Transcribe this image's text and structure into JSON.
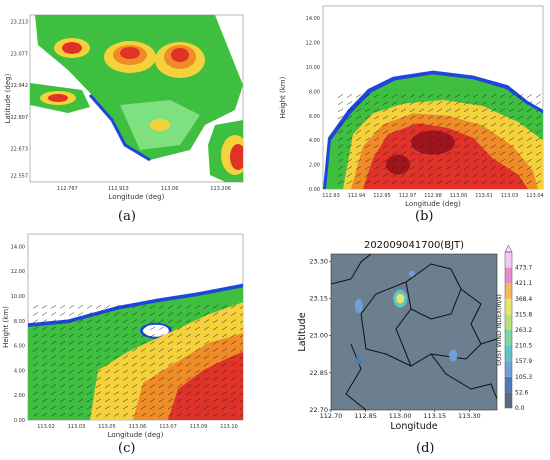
{
  "panels": {
    "a": {
      "caption": "(a)"
    },
    "b": {
      "caption": "(b)"
    },
    "c": {
      "caption": "(c)"
    },
    "d": {
      "caption": "(d)"
    }
  },
  "colors": {
    "green_dark": "#1e8c1e",
    "green": "#3fbf3f",
    "green_light": "#7fe07f",
    "yellow": "#f5d23c",
    "orange": "#f08c28",
    "red": "#e03228",
    "dark_red": "#a0141e",
    "blue": "#1e46dc",
    "cyan": "#64c8ff",
    "map_bg": "#6b7f8f"
  },
  "chart_data": [
    {
      "type": "heatmap",
      "panel": "a",
      "xlabel": "Longitude (deg)",
      "ylabel": "Latitude (deg)",
      "xticks": [
        "112.767",
        "112.913",
        "113.06",
        "113.206"
      ],
      "yticks": [
        "23.213",
        "23.077",
        "22.942",
        "22.807",
        "22.673",
        "22.557"
      ],
      "xlim": [
        112.66,
        113.27
      ],
      "ylim": [
        22.53,
        23.24
      ],
      "xtick_values": [
        112.767,
        112.913,
        113.06,
        113.206
      ],
      "ytick_values": [
        23.213,
        23.077,
        22.942,
        22.807,
        22.673,
        22.557
      ]
    },
    {
      "type": "heatmap",
      "panel": "b",
      "xlabel": "Longitude (deg)",
      "ylabel": "Height (km)",
      "xticks": [
        "112.93",
        "112.94",
        "112.95",
        "112.97",
        "112.98",
        "113.00",
        "113.01",
        "113.03",
        "113.04"
      ],
      "yticks": [
        "0.00",
        "2.00",
        "4.00",
        "6.00",
        "8.00",
        "10.00",
        "12.00",
        "14.00"
      ],
      "ylim": [
        0,
        15
      ]
    },
    {
      "type": "heatmap",
      "panel": "c",
      "xlabel": "Longitude (deg)",
      "ylabel": "Height (km)",
      "xticks": [
        "113.02",
        "113.03",
        "113.05",
        "113.06",
        "113.07",
        "113.09",
        "113.10"
      ],
      "yticks": [
        "0.00",
        "2.00",
        "4.00",
        "6.00",
        "8.00",
        "10.00",
        "12.00",
        "14.00"
      ],
      "ylim": [
        0,
        15
      ]
    },
    {
      "type": "heatmap",
      "panel": "d",
      "title": "202009041700(BJT)",
      "xlabel": "Longitude",
      "ylabel": "Latitude",
      "xticks": [
        "112.70",
        "112.85",
        "113.00",
        "113.15",
        "113.30"
      ],
      "yticks": [
        "22.70",
        "22.85",
        "23.00",
        "23.15",
        "23.30"
      ],
      "xlim": [
        112.7,
        113.42
      ],
      "ylim": [
        22.7,
        23.33
      ],
      "colorbar_label": "GUST WIND INDEX(m/s)",
      "colorbar_ticks": [
        "0.0",
        "52.6",
        "105.3",
        "157.9",
        "210.5",
        "263.2",
        "315.8",
        "368.4",
        "421.1",
        "473.7"
      ],
      "colorbar_colors": [
        "#5a6d80",
        "#4f78b4",
        "#6fa0d8",
        "#5fc3c8",
        "#7ed6a4",
        "#b8e07a",
        "#e8e46a",
        "#f4b860",
        "#e88ad0",
        "#f2c8f0"
      ]
    }
  ]
}
